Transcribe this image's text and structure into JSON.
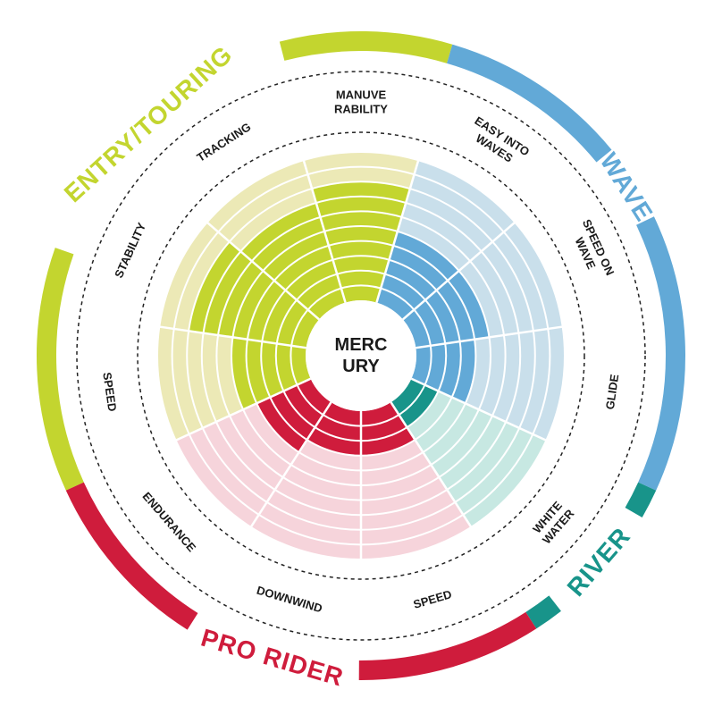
{
  "chart_data": {
    "type": "radial_bar",
    "title": "",
    "center_label": [
      "MERC",
      "URY"
    ],
    "max_level": 10,
    "categories": [
      {
        "name": "ENTRY/TOURING",
        "color": "#c3d52f",
        "light_color": "#ece9b6"
      },
      {
        "name": "WAVE",
        "color": "#62a9d7",
        "light_color": "#c9dfeb"
      },
      {
        "name": "RIVER",
        "color": "#18948a",
        "light_color": "#c7e8e2"
      },
      {
        "name": "PRO RIDER",
        "color": "#cf1c3c",
        "light_color": "#f6d4db"
      }
    ],
    "metrics": [
      {
        "label": [
          "MANUVE",
          "RABILITY"
        ],
        "category": "ENTRY/TOURING",
        "value": 8
      },
      {
        "label": [
          "EASY  INTO",
          "WAVES"
        ],
        "category": "WAVE",
        "value": 5
      },
      {
        "label": [
          "SPEED ON",
          "WAVE"
        ],
        "category": "WAVE",
        "value": 5
      },
      {
        "label": [
          "GLIDE"
        ],
        "category": "WAVE",
        "value": 4
      },
      {
        "label": [
          "WHITE",
          "WATER"
        ],
        "category": "RIVER",
        "value": 2
      },
      {
        "label": [
          "SPEED"
        ],
        "category": "PRO RIDER",
        "value": 3
      },
      {
        "label": [
          "DOWNWIND"
        ],
        "category": "PRO RIDER",
        "value": 3
      },
      {
        "label": [
          "ENDURANCE"
        ],
        "category": "PRO RIDER",
        "value": 4
      },
      {
        "label": [
          "SPEED"
        ],
        "category": "ENTRY/TOURING",
        "value": 5
      },
      {
        "label": [
          "STABILITY"
        ],
        "category": "ENTRY/TOURING",
        "value": 8
      },
      {
        "label": [
          "TRACKING"
        ],
        "category": "ENTRY/TOURING",
        "value": 7
      }
    ]
  }
}
